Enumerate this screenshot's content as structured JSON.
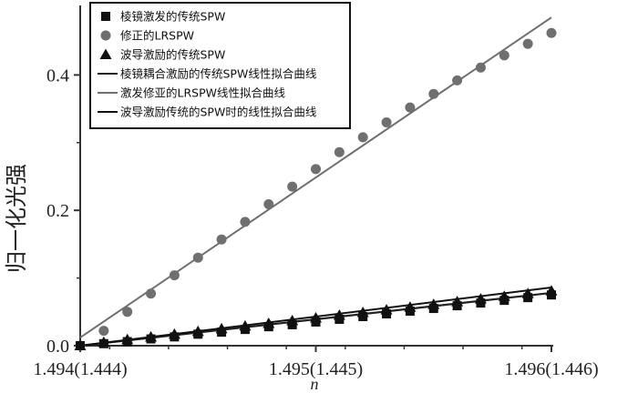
{
  "chart_data": {
    "type": "scatter",
    "title": "",
    "xlabel": "n",
    "ylabel": "归一化光强",
    "xlim": [
      1.494,
      1.496
    ],
    "ylim": [
      0,
      0.5
    ],
    "x_ticks": [
      1.494,
      1.495,
      1.496
    ],
    "x_tick_labels": [
      "1.494(1.444)",
      "1.495(1.445)",
      "1.496(1.446)"
    ],
    "y_ticks": [
      0.0,
      0.2,
      0.4
    ],
    "y_tick_labels": [
      "0.0",
      "0.2",
      "0.4"
    ],
    "grid": false,
    "legend_position": "top-left",
    "series": [
      {
        "name": "棱镜激发的传统SPW",
        "marker": "square",
        "color": "#111111",
        "x": [
          1.494,
          1.4941,
          1.4942,
          1.4943,
          1.4944,
          1.4945,
          1.4946,
          1.4947,
          1.4948,
          1.4949,
          1.495,
          1.4951,
          1.4952,
          1.4953,
          1.4954,
          1.4955,
          1.4956,
          1.4957,
          1.4958,
          1.4959,
          1.496
        ],
        "y": [
          0.0,
          0.003,
          0.006,
          0.01,
          0.013,
          0.017,
          0.02,
          0.024,
          0.028,
          0.031,
          0.035,
          0.039,
          0.043,
          0.047,
          0.051,
          0.055,
          0.059,
          0.063,
          0.067,
          0.071,
          0.075
        ]
      },
      {
        "name": "修正的LRSPW",
        "marker": "circle",
        "color": "#6f6f6f",
        "x": [
          1.494,
          1.4941,
          1.4942,
          1.4943,
          1.4944,
          1.4945,
          1.4946,
          1.4947,
          1.4948,
          1.4949,
          1.495,
          1.4951,
          1.4952,
          1.4953,
          1.4954,
          1.4955,
          1.4956,
          1.4957,
          1.4958,
          1.4959,
          1.496
        ],
        "y": [
          0.0,
          0.022,
          0.05,
          0.077,
          0.104,
          0.13,
          0.157,
          0.183,
          0.209,
          0.235,
          0.261,
          0.286,
          0.308,
          0.33,
          0.352,
          0.372,
          0.392,
          0.411,
          0.429,
          0.446,
          0.462
        ]
      },
      {
        "name": "波导激励的传统SPW",
        "marker": "triangle",
        "color": "#111111",
        "x": [
          1.494,
          1.4941,
          1.4942,
          1.4943,
          1.4944,
          1.4945,
          1.4946,
          1.4947,
          1.4948,
          1.4949,
          1.495,
          1.4951,
          1.4952,
          1.4953,
          1.4954,
          1.4955,
          1.4956,
          1.4957,
          1.4958,
          1.4959,
          1.496
        ],
        "y": [
          0.0,
          0.005,
          0.009,
          0.013,
          0.017,
          0.021,
          0.025,
          0.029,
          0.033,
          0.037,
          0.041,
          0.045,
          0.049,
          0.053,
          0.057,
          0.061,
          0.065,
          0.069,
          0.073,
          0.077,
          0.081
        ]
      }
    ],
    "fits": [
      {
        "name": "棱镜耦合激励的传统SPW线性拟合曲线",
        "color": "#222222",
        "x": [
          1.494,
          1.496
        ],
        "y": [
          0.0,
          0.078
        ]
      },
      {
        "name": "激发修亚的LRSPW线性拟合曲线",
        "color": "#6f6f6f",
        "x": [
          1.494,
          1.496
        ],
        "y": [
          0.012,
          0.485
        ]
      },
      {
        "name": "波导激励传统的SPW时的线性拟合曲线",
        "color": "#111111",
        "x": [
          1.494,
          1.496
        ],
        "y": [
          0.0,
          0.086
        ]
      }
    ]
  }
}
